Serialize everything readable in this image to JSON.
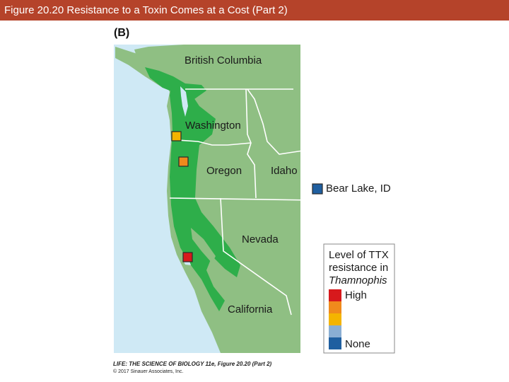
{
  "header": {
    "title": "Figure 20.20  Resistance to a Toxin Comes at a Cost (Part 2)"
  },
  "panel_label": "(B)",
  "map": {
    "regions": [
      "British Columbia",
      "Washington",
      "Oregon",
      "Idaho",
      "Nevada",
      "California"
    ],
    "callout_label": "Bear Lake, ID",
    "colors": {
      "ocean": "#cfe9f5",
      "land": "#8fbf83",
      "snake_range": "#2eae4a",
      "border": "#ffffff"
    },
    "sites": [
      {
        "name": "coastal Washington",
        "resistance": "moderate",
        "color": "#f4b400"
      },
      {
        "name": "coastal Oregon",
        "resistance": "moderate-high",
        "color": "#f08a1c"
      },
      {
        "name": "central California coast",
        "resistance": "high",
        "color": "#d7191c"
      },
      {
        "name": "Bear Lake, ID",
        "resistance": "none",
        "color": "#1f5fa0"
      }
    ]
  },
  "legend": {
    "title_line1": "Level of TTX",
    "title_line2": "resistance in",
    "title_line3": "Thamnophis",
    "high_label": "High",
    "none_label": "None",
    "swatches": [
      "#d7191c",
      "#f08a1c",
      "#f4b400",
      "#8aaed3",
      "#1f5fa0"
    ]
  },
  "credit": {
    "line1": "LIFE: THE SCIENCE OF BIOLOGY 11e, Figure 20.20 (Part 2)",
    "line2": "© 2017 Sinauer Associates, Inc."
  }
}
